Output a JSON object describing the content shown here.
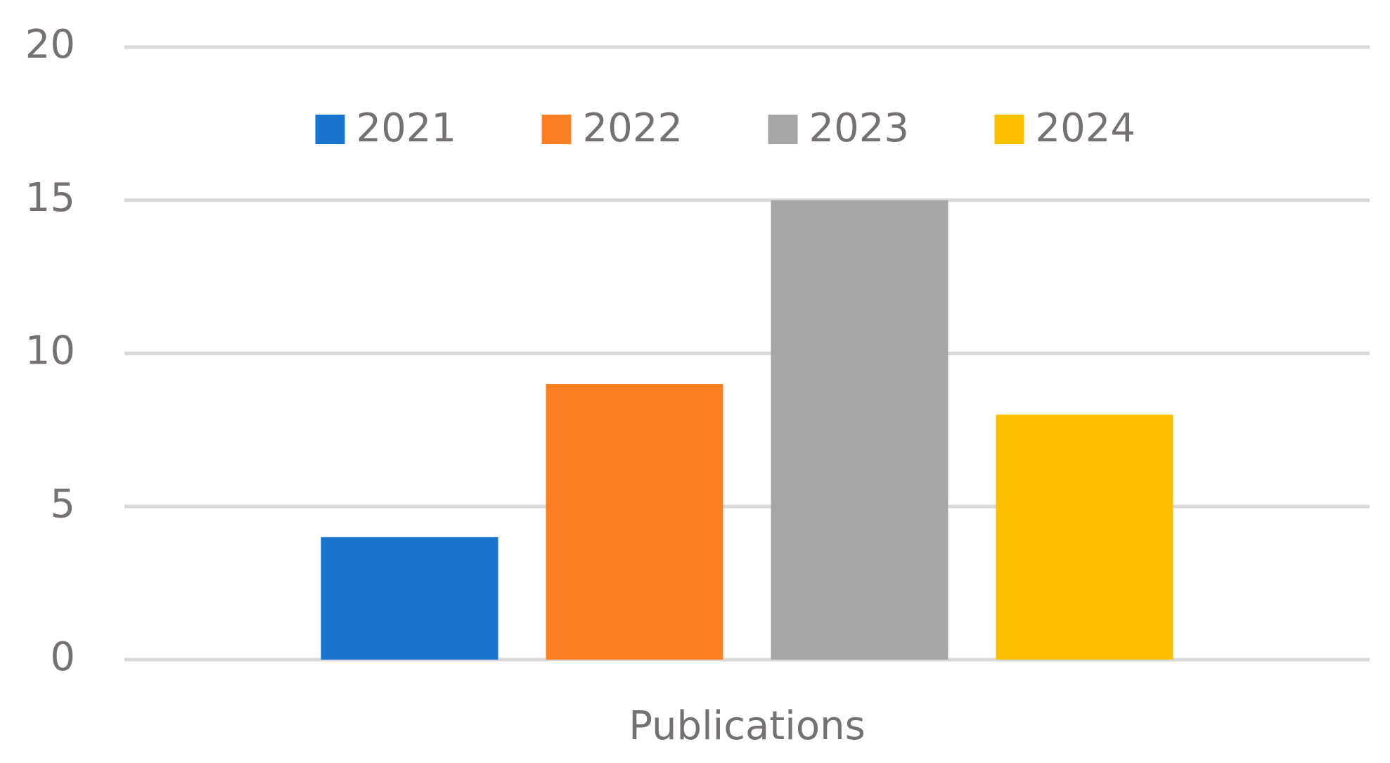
{
  "chart_data": {
    "type": "bar",
    "categories": [
      "Publications"
    ],
    "series": [
      {
        "name": "2021",
        "color": "#1874cd",
        "values": [
          4
        ]
      },
      {
        "name": "2022",
        "color": "#fd7f23",
        "values": [
          9
        ]
      },
      {
        "name": "2023",
        "color": "#a6a6a6",
        "values": [
          15
        ]
      },
      {
        "name": "2024",
        "color": "#fdc000",
        "values": [
          8
        ]
      }
    ],
    "ylim": [
      0,
      20
    ],
    "yticks": [
      0,
      5,
      10,
      15,
      20
    ],
    "grid": true,
    "legend": "top"
  }
}
